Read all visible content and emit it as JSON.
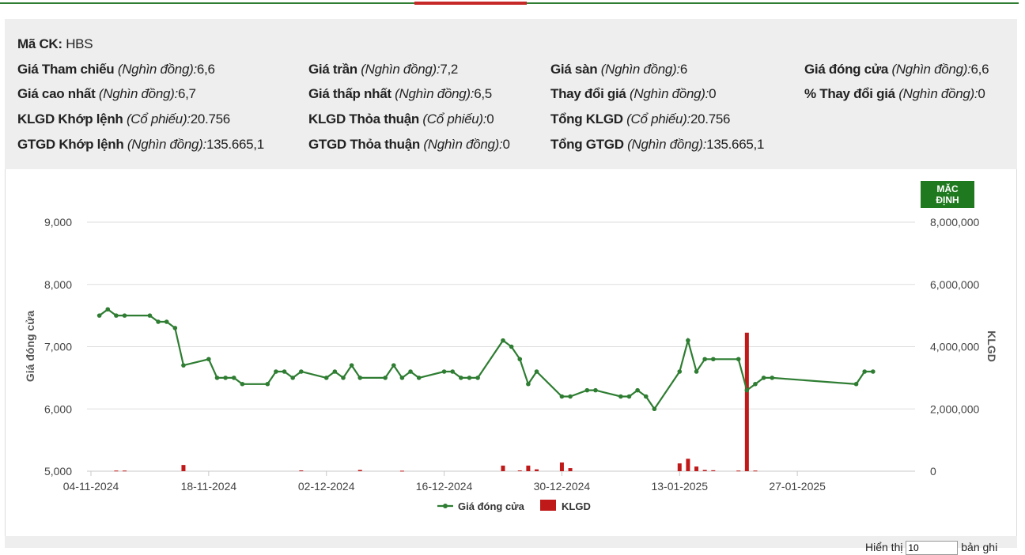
{
  "info": {
    "code_label": "Mã CK:",
    "code_value": "HBS",
    "items": [
      {
        "label": "Giá Tham chiếu",
        "unit": "(Nghìn đồng):",
        "value": "6,6"
      },
      {
        "label": "Giá trần",
        "unit": "(Nghìn đồng):",
        "value": "7,2"
      },
      {
        "label": "Giá sàn",
        "unit": "(Nghìn đồng):",
        "value": "6"
      },
      {
        "label": "Giá đóng cửa",
        "unit": "(Nghìn đồng):",
        "value": "6,6"
      },
      {
        "label": "Giá cao nhất",
        "unit": "(Nghìn đồng):",
        "value": "6,7"
      },
      {
        "label": "Giá thấp nhất",
        "unit": "(Nghìn đồng):",
        "value": "6,5"
      },
      {
        "label": "Thay đổi giá",
        "unit": "(Nghìn đồng):",
        "value": "0"
      },
      {
        "label": "% Thay đổi giá",
        "unit": "(Nghìn đồng):",
        "value": "0"
      },
      {
        "label": "KLGD Khớp lệnh",
        "unit": "(Cổ phiếu):",
        "value": "20.756"
      },
      {
        "label": "KLGD Thỏa thuận",
        "unit": "(Cổ phiếu):",
        "value": "0"
      },
      {
        "label": "Tổng KLGD",
        "unit": "(Cổ phiếu):",
        "value": "20.756"
      },
      {
        "label": "GTGD Khớp lệnh",
        "unit": "(Nghìn đồng):",
        "value": "135.665,1"
      },
      {
        "label": "GTGD Thỏa thuận",
        "unit": "(Nghìn đồng):",
        "value": "0"
      },
      {
        "label": "Tổng GTGD",
        "unit": "(Nghìn đồng):",
        "value": "135.665,1"
      }
    ]
  },
  "button": {
    "label": "MẶC ĐỊNH"
  },
  "pager": {
    "prefix": "Hiển thị",
    "value": "10",
    "suffix": "bản ghi"
  },
  "colors": {
    "line": "#2e7d32",
    "bar": "#c0191a",
    "button": "#1f7a1f"
  },
  "chart_data": {
    "type": "line+bar",
    "x_axis": {
      "type": "date",
      "range": [
        "2024-11-04",
        "2025-02-10"
      ],
      "ticks": [
        "04-11-2024",
        "18-11-2024",
        "02-12-2024",
        "16-12-2024",
        "30-12-2024",
        "13-01-2025",
        "27-01-2025"
      ]
    },
    "y_left": {
      "label": "Giá đóng cửa",
      "ylim": [
        5000,
        9000
      ],
      "ticks": [
        "5,000",
        "6,000",
        "7,000",
        "8,000",
        "9,000"
      ]
    },
    "y_right": {
      "label": "KLGD",
      "ylim": [
        0,
        8000000
      ],
      "ticks": [
        "0",
        "2,000,000",
        "4,000,000",
        "6,000,000",
        "8,000,000"
      ]
    },
    "grid": "horizontal",
    "legend": {
      "position": "bottom-center"
    },
    "series": [
      {
        "name": "Giá đóng cửa",
        "kind": "line",
        "points": [
          [
            "2024-11-05",
            7500
          ],
          [
            "2024-11-06",
            7600
          ],
          [
            "2024-11-07",
            7500
          ],
          [
            "2024-11-08",
            7500
          ],
          [
            "2024-11-11",
            7500
          ],
          [
            "2024-11-12",
            7400
          ],
          [
            "2024-11-13",
            7400
          ],
          [
            "2024-11-14",
            7300
          ],
          [
            "2024-11-15",
            6700
          ],
          [
            "2024-11-18",
            6800
          ],
          [
            "2024-11-19",
            6500
          ],
          [
            "2024-11-20",
            6500
          ],
          [
            "2024-11-21",
            6500
          ],
          [
            "2024-11-22",
            6400
          ],
          [
            "2024-11-25",
            6400
          ],
          [
            "2024-11-26",
            6600
          ],
          [
            "2024-11-27",
            6600
          ],
          [
            "2024-11-28",
            6500
          ],
          [
            "2024-11-29",
            6600
          ],
          [
            "2024-12-02",
            6500
          ],
          [
            "2024-12-03",
            6600
          ],
          [
            "2024-12-04",
            6500
          ],
          [
            "2024-12-05",
            6700
          ],
          [
            "2024-12-06",
            6500
          ],
          [
            "2024-12-09",
            6500
          ],
          [
            "2024-12-10",
            6700
          ],
          [
            "2024-12-11",
            6500
          ],
          [
            "2024-12-12",
            6600
          ],
          [
            "2024-12-13",
            6500
          ],
          [
            "2024-12-16",
            6600
          ],
          [
            "2024-12-17",
            6600
          ],
          [
            "2024-12-18",
            6500
          ],
          [
            "2024-12-19",
            6500
          ],
          [
            "2024-12-20",
            6500
          ],
          [
            "2024-12-23",
            7100
          ],
          [
            "2024-12-24",
            7000
          ],
          [
            "2024-12-25",
            6800
          ],
          [
            "2024-12-26",
            6400
          ],
          [
            "2024-12-27",
            6600
          ],
          [
            "2024-12-30",
            6200
          ],
          [
            "2024-12-31",
            6200
          ],
          [
            "2025-01-02",
            6300
          ],
          [
            "2025-01-03",
            6300
          ],
          [
            "2025-01-06",
            6200
          ],
          [
            "2025-01-07",
            6200
          ],
          [
            "2025-01-08",
            6300
          ],
          [
            "2025-01-09",
            6200
          ],
          [
            "2025-01-10",
            6000
          ],
          [
            "2025-01-13",
            6600
          ],
          [
            "2025-01-14",
            7100
          ],
          [
            "2025-01-15",
            6600
          ],
          [
            "2025-01-16",
            6800
          ],
          [
            "2025-01-17",
            6800
          ],
          [
            "2025-01-20",
            6800
          ],
          [
            "2025-01-21",
            6300
          ],
          [
            "2025-01-22",
            6400
          ],
          [
            "2025-01-23",
            6500
          ],
          [
            "2025-01-24",
            6500
          ],
          [
            "2025-02-03",
            6400
          ],
          [
            "2025-02-04",
            6600
          ],
          [
            "2025-02-05",
            6600
          ]
        ]
      },
      {
        "name": "KLGD",
        "kind": "bar",
        "points": [
          [
            "2024-11-07",
            20000
          ],
          [
            "2024-11-08",
            20000
          ],
          [
            "2024-11-15",
            200000
          ],
          [
            "2024-11-29",
            25000
          ],
          [
            "2024-12-06",
            40000
          ],
          [
            "2024-12-11",
            15000
          ],
          [
            "2024-12-23",
            180000
          ],
          [
            "2024-12-25",
            25000
          ],
          [
            "2024-12-26",
            180000
          ],
          [
            "2024-12-27",
            60000
          ],
          [
            "2024-12-30",
            280000
          ],
          [
            "2024-12-31",
            100000
          ],
          [
            "2025-01-13",
            250000
          ],
          [
            "2025-01-14",
            400000
          ],
          [
            "2025-01-15",
            150000
          ],
          [
            "2025-01-16",
            40000
          ],
          [
            "2025-01-17",
            30000
          ],
          [
            "2025-01-20",
            20000
          ],
          [
            "2025-01-21",
            4450000
          ],
          [
            "2025-01-22",
            20000
          ]
        ]
      }
    ]
  }
}
